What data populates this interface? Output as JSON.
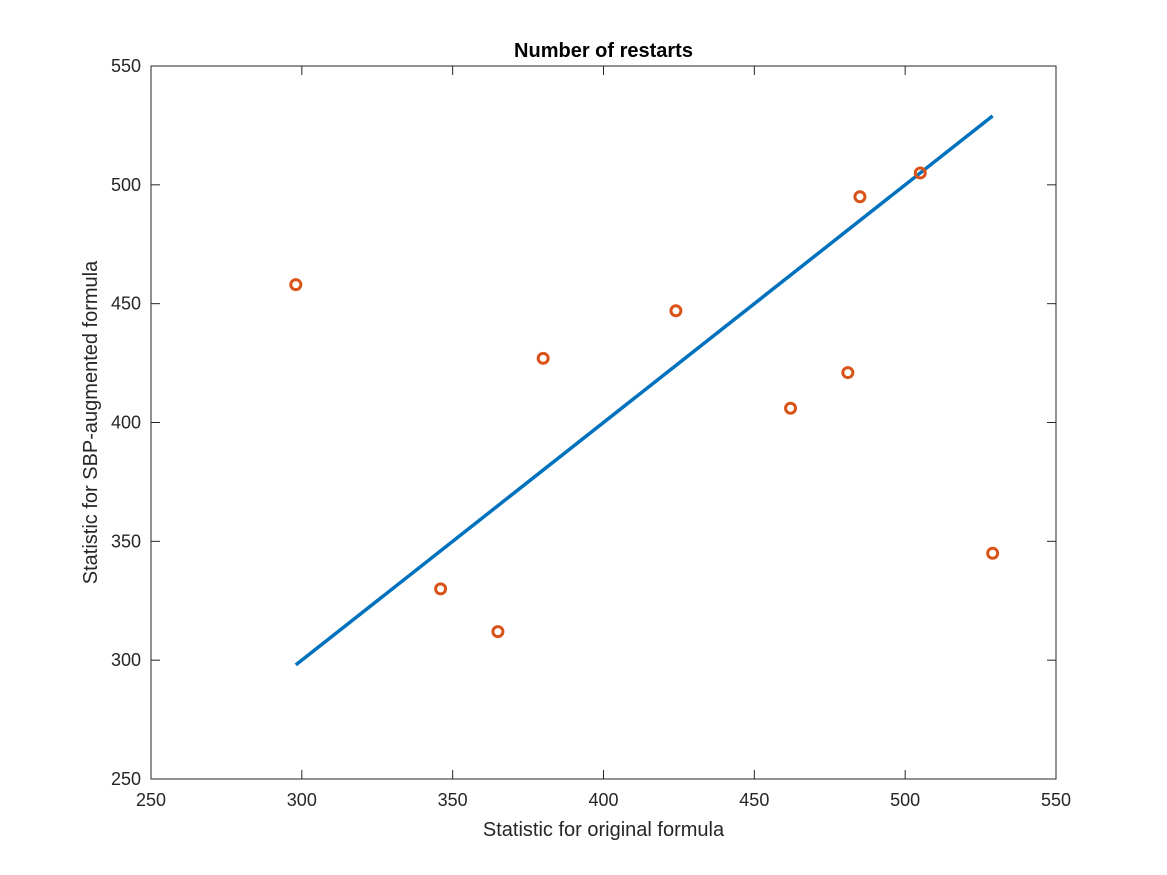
{
  "chart_data": {
    "type": "scatter",
    "title": "Number of restarts",
    "xlabel": "Statistic for original formula",
    "ylabel": "Statistic for SBP-augmented formula",
    "xlim": [
      250,
      550
    ],
    "ylim": [
      250,
      550
    ],
    "xticks": [
      250,
      300,
      350,
      400,
      450,
      500,
      550
    ],
    "yticks": [
      250,
      300,
      350,
      400,
      450,
      500,
      550
    ],
    "grid": false,
    "points": [
      {
        "x": 298,
        "y": 458
      },
      {
        "x": 346,
        "y": 330
      },
      {
        "x": 365,
        "y": 312
      },
      {
        "x": 380,
        "y": 427
      },
      {
        "x": 424,
        "y": 447
      },
      {
        "x": 462,
        "y": 406
      },
      {
        "x": 481,
        "y": 421
      },
      {
        "x": 485,
        "y": 495
      },
      {
        "x": 505,
        "y": 505
      },
      {
        "x": 529,
        "y": 345
      }
    ],
    "reference_line": {
      "x": [
        298,
        529
      ],
      "y": [
        298,
        529
      ]
    },
    "colors": {
      "points": "#D95319",
      "line": "#0072BD",
      "axes": "#262626"
    }
  }
}
